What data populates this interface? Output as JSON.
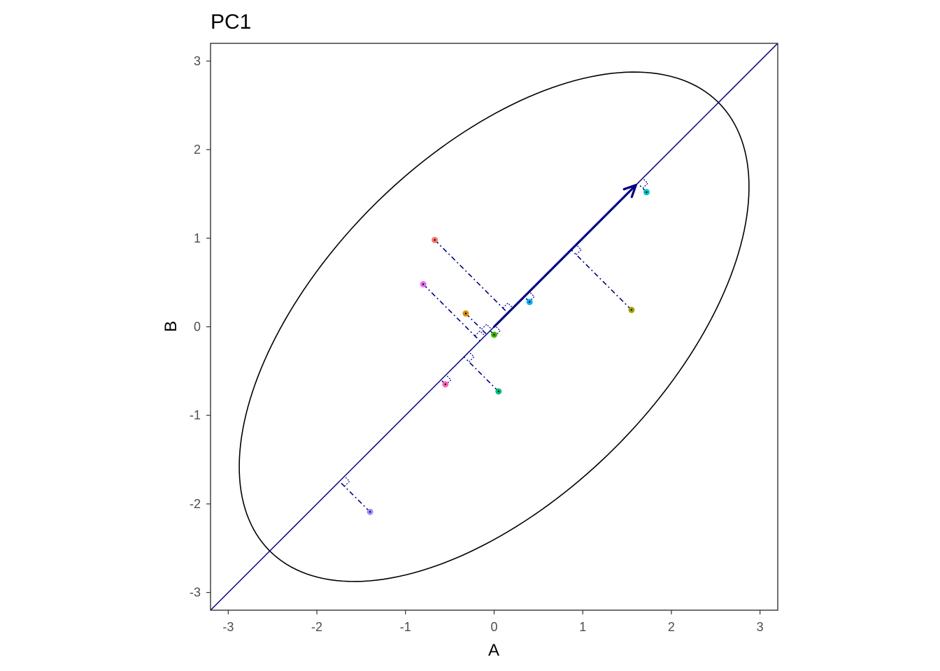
{
  "chart_data": {
    "type": "scatter",
    "title": "PC1",
    "xlabel": "A",
    "ylabel": "B",
    "xlim": [
      -3.2,
      3.2
    ],
    "ylim": [
      -3.2,
      3.2
    ],
    "xticks": [
      "-3",
      "-2",
      "-1",
      "0",
      "1",
      "2",
      "3"
    ],
    "yticks": [
      "-3",
      "-2",
      "-1",
      "0",
      "1",
      "2",
      "3"
    ],
    "grid": false,
    "legend": "none",
    "points": [
      {
        "x": -0.67,
        "y": 0.98,
        "color": "#F8766D"
      },
      {
        "x": 1.55,
        "y": 0.19,
        "color": "#A3A500"
      },
      {
        "x": -0.32,
        "y": 0.15,
        "color": "#D89000"
      },
      {
        "x": 0.0,
        "y": -0.09,
        "color": "#39B600"
      },
      {
        "x": 0.05,
        "y": -0.73,
        "color": "#00BF7D"
      },
      {
        "x": 1.72,
        "y": 1.52,
        "color": "#00BFC4"
      },
      {
        "x": 0.4,
        "y": 0.28,
        "color": "#00B0F6"
      },
      {
        "x": -1.4,
        "y": -2.09,
        "color": "#9590FF"
      },
      {
        "x": -0.8,
        "y": 0.48,
        "color": "#E76BF3"
      },
      {
        "x": -0.55,
        "y": -0.65,
        "color": "#FF62BC"
      }
    ],
    "pc_line": {
      "slope": 1.0,
      "intercept": 0.0,
      "color": "#000080"
    },
    "pc_arrow": {
      "from": [
        0,
        0
      ],
      "to": [
        1.6,
        1.6
      ],
      "color": "#000080"
    },
    "ellipse": {
      "center": [
        0,
        0
      ],
      "angle_deg": 45,
      "semi_major": 3.58,
      "semi_minor": 1.93,
      "color": "#000000"
    }
  }
}
